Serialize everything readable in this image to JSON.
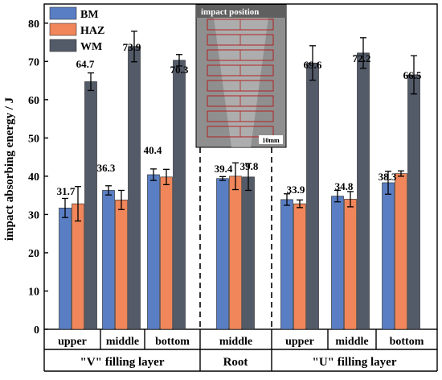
{
  "chart_data": {
    "type": "bar",
    "ylabel": "impact absorbing energy / J",
    "ylim": [
      0,
      85
    ],
    "yticks": [
      0,
      10,
      20,
      30,
      40,
      50,
      60,
      70,
      80
    ],
    "legend": {
      "placement": "top-left",
      "entries": [
        {
          "name": "BM",
          "color": "#5a7ec4"
        },
        {
          "name": "HAZ",
          "color": "#f0865a"
        },
        {
          "name": "WM",
          "color": "#535a68"
        }
      ]
    },
    "categories": [
      "upper",
      "middle",
      "bottom",
      "middle",
      "upper",
      "middle",
      "bottom"
    ],
    "groups": [
      {
        "label": "\"V\" filling layer",
        "span": [
          0,
          2
        ]
      },
      {
        "label": "Root",
        "span": [
          3,
          3
        ]
      },
      {
        "label": "\"U\" filling layer",
        "span": [
          4,
          6
        ]
      }
    ],
    "series": [
      {
        "name": "BM",
        "values": [
          31.7,
          36.3,
          40.4,
          39.4,
          33.9,
          34.8,
          38.3
        ],
        "errors": [
          2.5,
          1.2,
          1.5,
          0.5,
          1.5,
          1.5,
          3.0
        ]
      },
      {
        "name": "HAZ",
        "values": [
          32.8,
          33.8,
          39.8,
          40.0,
          32.8,
          34.0,
          40.7
        ],
        "errors": [
          4.5,
          2.5,
          2.0,
          3.5,
          1.0,
          2.0,
          0.7
        ]
      },
      {
        "name": "WM",
        "values": [
          64.7,
          73.9,
          70.3,
          39.8,
          69.6,
          72.2,
          66.5
        ],
        "errors": [
          2.3,
          4.0,
          1.5,
          3.5,
          4.5,
          4.0,
          5.0
        ]
      }
    ],
    "data_labels": [
      "31.7",
      "36.3",
      "40.4",
      "39.4",
      "39.8",
      "33.9",
      "34.8",
      "38.3",
      "64.7",
      "73.9",
      "70.3",
      "69.6",
      "72.2",
      "66.5"
    ],
    "inset": {
      "title": "impact position",
      "scale_label": "10mm"
    }
  }
}
